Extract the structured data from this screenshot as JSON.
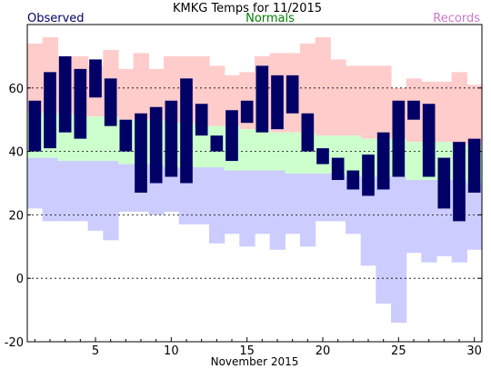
{
  "chart_data": {
    "type": "bar",
    "title": "KMKG Temps for 11/2015",
    "xlabel": "November 2015",
    "ylabel": "",
    "xlim": [
      0.5,
      30.5
    ],
    "ylim": [
      -20,
      80
    ],
    "yticks": [
      -20,
      0,
      20,
      40,
      60
    ],
    "xticks": [
      5,
      10,
      15,
      20,
      25,
      30
    ],
    "dashed_gridlines": [
      0,
      20,
      40,
      60
    ],
    "legend": [
      {
        "name": "Observed",
        "color": "#000066",
        "position": "top-left"
      },
      {
        "name": "Normals",
        "color": "#008000",
        "position": "top-center"
      },
      {
        "name": "Records",
        "color": "#CC77CC",
        "position": "top-right"
      }
    ],
    "colors": {
      "observed": "#000066",
      "normals": "#CCFFCC",
      "records_high": "#FFCCCC",
      "records_low": "#CCCCFF"
    },
    "days": [
      1,
      2,
      3,
      4,
      5,
      6,
      7,
      8,
      9,
      10,
      11,
      12,
      13,
      14,
      15,
      16,
      17,
      18,
      19,
      20,
      21,
      22,
      23,
      24,
      25,
      26,
      27,
      28,
      29,
      30
    ],
    "observed_high": [
      56,
      65,
      70,
      66,
      69,
      63,
      50,
      52,
      54,
      56,
      63,
      55,
      45,
      53,
      56,
      67,
      64,
      64,
      52,
      41,
      38,
      34,
      39,
      46,
      56,
      56,
      55,
      38,
      43,
      44
    ],
    "observed_low": [
      40,
      41,
      46,
      44,
      57,
      48,
      40,
      27,
      30,
      32,
      30,
      45,
      40,
      37,
      49,
      46,
      47,
      52,
      40,
      36,
      31,
      28,
      26,
      28,
      32,
      50,
      32,
      22,
      18,
      27
    ],
    "normal_high": [
      52,
      52,
      52,
      51,
      51,
      51,
      50,
      50,
      50,
      49,
      49,
      48,
      48,
      48,
      47,
      47,
      46,
      46,
      46,
      45,
      45,
      45,
      44,
      44,
      44,
      43,
      43,
      43,
      42,
      42
    ],
    "normal_low": [
      38,
      38,
      37,
      37,
      37,
      37,
      36,
      36,
      36,
      35,
      35,
      35,
      35,
      34,
      34,
      34,
      34,
      33,
      33,
      33,
      33,
      32,
      32,
      32,
      32,
      31,
      31,
      31,
      31,
      30
    ],
    "record_high": [
      74,
      76,
      70,
      70,
      67,
      72,
      66,
      71,
      66,
      70,
      70,
      70,
      67,
      64,
      65,
      70,
      71,
      71,
      74,
      76,
      69,
      67,
      67,
      67,
      60,
      63,
      62,
      62,
      65,
      61
    ],
    "record_low": [
      22,
      18,
      18,
      18,
      15,
      12,
      21,
      21,
      20,
      21,
      17,
      17,
      11,
      14,
      10,
      14,
      9,
      14,
      10,
      18,
      18,
      14,
      4,
      -8,
      -14,
      8,
      5,
      7,
      5,
      9
    ]
  }
}
